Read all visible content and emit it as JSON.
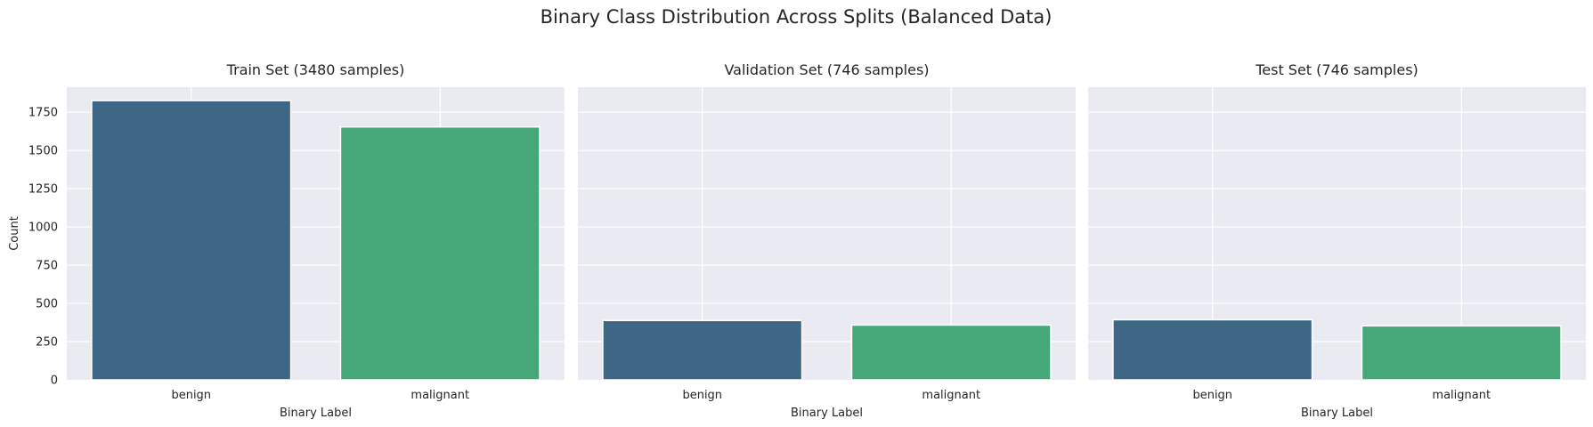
{
  "chart_data": {
    "type": "bar",
    "suptitle": "Binary Class Distribution Across Splits (Balanced Data)",
    "ylabel": "Count",
    "ylim": [
      0,
      1914
    ],
    "yticks": [
      0,
      250,
      500,
      750,
      1000,
      1250,
      1500,
      1750
    ],
    "grid": true,
    "colors": [
      "#3e6785",
      "#46a879"
    ],
    "panels": [
      {
        "title": "Train Set (3480 samples)",
        "xlabel": "Binary Label",
        "categories": [
          "benign",
          "malignant"
        ],
        "values": [
          1826,
          1654
        ]
      },
      {
        "title": "Validation Set (746 samples)",
        "xlabel": "Binary Label",
        "categories": [
          "benign",
          "malignant"
        ],
        "values": [
          388,
          358
        ]
      },
      {
        "title": "Test Set (746 samples)",
        "xlabel": "Binary Label",
        "categories": [
          "benign",
          "malignant"
        ],
        "values": [
          393,
          353
        ]
      }
    ]
  }
}
